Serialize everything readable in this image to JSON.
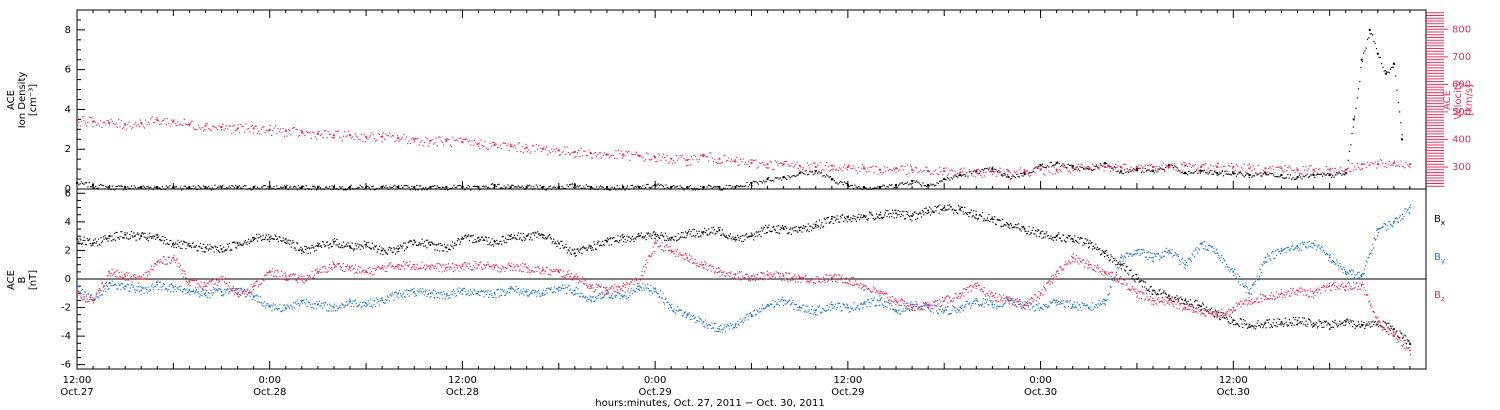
{
  "colors": {
    "black": "#000000",
    "pink": "#e8305a",
    "blue": "#1f78d1"
  },
  "chart_data": [
    {
      "type": "scatter",
      "panel": "top",
      "ylabel_left_lines": [
        "ACE",
        "Ion Density",
        "[cm⁻³]"
      ],
      "ylabel_right_lines": [
        "ACE",
        "Velocity",
        "[km/s]"
      ],
      "ylim_left": [
        0,
        9
      ],
      "yticks_left": [
        0,
        2,
        4,
        6,
        8
      ],
      "ylim_right": [
        220,
        870
      ],
      "yticks_right": [
        300,
        400,
        500,
        600,
        700,
        800
      ],
      "x_unit": "hours since Oct. 27 12:00",
      "xlim": [
        0,
        84
      ],
      "series": [
        {
          "name": "Ion Density",
          "axis": "left",
          "color": "black",
          "x": [
            0,
            1,
            2,
            3,
            4,
            5,
            6,
            7,
            8,
            9,
            10,
            11,
            12,
            13,
            14,
            15,
            16,
            17,
            18,
            19,
            20,
            21,
            22,
            23,
            24,
            25,
            26,
            27,
            28,
            29,
            30,
            31,
            32,
            33,
            34,
            35,
            36,
            37,
            38,
            39,
            40,
            41,
            42,
            43,
            44,
            45,
            46,
            47,
            48,
            49,
            50,
            51,
            52,
            53,
            54,
            55,
            56,
            57,
            58,
            59,
            60,
            61,
            62,
            63,
            64,
            65,
            66,
            67,
            68,
            69,
            70,
            71,
            72,
            73,
            74,
            75,
            76,
            77,
            78,
            79,
            79.5,
            80,
            80.5,
            81,
            81.5,
            82,
            82.5
          ],
          "y": [
            0.3,
            0.2,
            0.1,
            0.1,
            0.1,
            0.1,
            0.1,
            0.1,
            0.1,
            0.1,
            0.1,
            0.1,
            0.1,
            0.1,
            0.1,
            0.1,
            0.1,
            0.1,
            0.1,
            0.1,
            0.1,
            0.1,
            0.1,
            0.1,
            0.1,
            0.1,
            0.2,
            0.1,
            0.1,
            0.1,
            0.1,
            0.2,
            0.1,
            0.1,
            0.1,
            0.1,
            0.2,
            0.1,
            0.1,
            0.1,
            0.1,
            0.1,
            0.3,
            0.5,
            0.6,
            0.8,
            0.9,
            0.5,
            0.2,
            0.1,
            0.1,
            0.2,
            0.4,
            0.2,
            0.5,
            0.7,
            0.9,
            1.0,
            0.6,
            0.8,
            1.2,
            1.3,
            1.1,
            1.0,
            1.3,
            0.9,
            1.0,
            0.9,
            1.2,
            0.8,
            0.9,
            0.8,
            0.8,
            0.7,
            0.8,
            0.7,
            0.6,
            0.7,
            0.7,
            0.8,
            3.5,
            6.5,
            8.0,
            6.8,
            5.8,
            6.3,
            2.5
          ]
        },
        {
          "name": "Velocity",
          "axis": "right",
          "color": "pink",
          "x": [
            0,
            1,
            2,
            3,
            4,
            5,
            6,
            7,
            8,
            9,
            10,
            11,
            12,
            13,
            14,
            15,
            16,
            17,
            18,
            19,
            20,
            21,
            22,
            23,
            24,
            25,
            26,
            27,
            28,
            29,
            30,
            31,
            32,
            33,
            34,
            35,
            36,
            37,
            38,
            39,
            40,
            41,
            42,
            43,
            44,
            45,
            46,
            47,
            48,
            49,
            50,
            51,
            52,
            53,
            54,
            55,
            56,
            57,
            58,
            59,
            60,
            61,
            62,
            63,
            64,
            65,
            66,
            67,
            68,
            69,
            70,
            71,
            72,
            73,
            74,
            75,
            76,
            77,
            78,
            79,
            80,
            81,
            82,
            83
          ],
          "y": [
            470,
            465,
            460,
            455,
            460,
            470,
            465,
            455,
            450,
            445,
            440,
            440,
            435,
            430,
            425,
            420,
            415,
            415,
            410,
            410,
            405,
            400,
            395,
            395,
            390,
            385,
            380,
            375,
            370,
            365,
            360,
            355,
            350,
            345,
            345,
            340,
            335,
            330,
            325,
            340,
            330,
            320,
            315,
            310,
            310,
            305,
            300,
            305,
            300,
            295,
            290,
            295,
            290,
            285,
            285,
            280,
            280,
            285,
            285,
            285,
            290,
            290,
            295,
            295,
            300,
            300,
            300,
            300,
            300,
            305,
            300,
            300,
            300,
            295,
            295,
            295,
            290,
            290,
            290,
            290,
            310,
            310,
            315,
            310
          ]
        }
      ]
    },
    {
      "type": "line",
      "panel": "bottom",
      "ylabel_lines": [
        "ACE",
        "B",
        "[nT]"
      ],
      "ylim": [
        -6.3,
        6.3
      ],
      "yticks": [
        -6,
        -4,
        -2,
        0,
        2,
        4,
        6
      ],
      "zero_line": true,
      "x_unit": "hours since Oct. 27 12:00",
      "xlim": [
        0,
        84
      ],
      "series": [
        {
          "name": "Bx",
          "label": "B",
          "sub": "x",
          "color": "black",
          "x": [
            0,
            1,
            2,
            3,
            4,
            5,
            6,
            7,
            8,
            9,
            10,
            11,
            12,
            13,
            14,
            15,
            16,
            17,
            18,
            19,
            20,
            21,
            22,
            23,
            24,
            25,
            26,
            27,
            28,
            29,
            30,
            31,
            32,
            33,
            34,
            35,
            36,
            37,
            38,
            39,
            40,
            41,
            42,
            43,
            44,
            45,
            46,
            47,
            48,
            49,
            50,
            51,
            52,
            53,
            54,
            55,
            56,
            57,
            58,
            59,
            60,
            61,
            62,
            63,
            64,
            65,
            66,
            67,
            68,
            69,
            70,
            71,
            72,
            73,
            74,
            75,
            76,
            77,
            78,
            79,
            80,
            81,
            82,
            83
          ],
          "y": [
            2.8,
            2.5,
            3.0,
            3.1,
            3.0,
            2.9,
            2.5,
            2.3,
            2.2,
            2.1,
            2.5,
            2.9,
            2.9,
            2.8,
            2.0,
            2.3,
            2.6,
            2.3,
            2.4,
            2.0,
            2.1,
            2.7,
            2.4,
            2.2,
            2.8,
            2.9,
            2.6,
            3.0,
            3.0,
            3.1,
            2.5,
            1.8,
            2.3,
            2.6,
            2.9,
            3.0,
            3.1,
            2.9,
            3.2,
            3.3,
            3.4,
            2.9,
            3.0,
            3.6,
            3.5,
            3.4,
            3.8,
            4.2,
            4.3,
            4.4,
            4.5,
            4.6,
            4.4,
            4.8,
            5.0,
            4.9,
            4.5,
            4.2,
            3.8,
            3.5,
            3.2,
            3.0,
            2.8,
            2.5,
            1.8,
            1.0,
            0.0,
            -0.8,
            -1.2,
            -1.5,
            -1.9,
            -2.5,
            -2.9,
            -3.2,
            -3.1,
            -3.0,
            -2.9,
            -3.1,
            -3.2,
            -3.0,
            -3.2,
            -3.0,
            -3.5,
            -4.5
          ]
        },
        {
          "name": "By",
          "label": "B",
          "sub": "y",
          "color": "blue",
          "x": [
            0,
            1,
            2,
            3,
            4,
            5,
            6,
            7,
            8,
            9,
            10,
            11,
            12,
            13,
            14,
            15,
            16,
            17,
            18,
            19,
            20,
            21,
            22,
            23,
            24,
            25,
            26,
            27,
            28,
            29,
            30,
            31,
            32,
            33,
            34,
            35,
            36,
            37,
            38,
            39,
            40,
            41,
            42,
            43,
            44,
            45,
            46,
            47,
            48,
            49,
            50,
            51,
            52,
            53,
            54,
            55,
            56,
            57,
            58,
            59,
            60,
            61,
            62,
            63,
            64,
            65,
            66,
            67,
            68,
            69,
            70,
            71,
            72,
            73,
            74,
            75,
            76,
            77,
            78,
            79,
            80,
            81,
            82,
            83
          ],
          "y": [
            -0.5,
            -1.5,
            -0.3,
            -0.5,
            -0.8,
            -0.4,
            -0.6,
            -0.8,
            -1.0,
            -0.9,
            -0.7,
            -1.2,
            -1.9,
            -2.0,
            -1.5,
            -1.8,
            -2.0,
            -1.6,
            -1.7,
            -1.5,
            -1.0,
            -0.9,
            -1.0,
            -1.1,
            -0.8,
            -0.9,
            -1.0,
            -0.7,
            -0.9,
            -1.0,
            -0.6,
            -0.8,
            -1.5,
            -1.0,
            -1.2,
            -0.5,
            -0.7,
            -2.0,
            -2.5,
            -3.0,
            -3.5,
            -3.2,
            -2.5,
            -1.8,
            -1.5,
            -2.0,
            -2.2,
            -1.8,
            -2.0,
            -1.7,
            -1.5,
            -2.2,
            -1.8,
            -2.0,
            -2.2,
            -2.0,
            -1.5,
            -1.8,
            -1.5,
            -1.8,
            -2.0,
            -1.5,
            -1.8,
            -2.0,
            -1.5,
            1.5,
            2.0,
            1.5,
            2.0,
            1.0,
            2.5,
            1.8,
            0.5,
            -1.0,
            1.5,
            2.0,
            2.3,
            2.5,
            1.5,
            0.5,
            0.2,
            3.5,
            4.0,
            5.0
          ]
        },
        {
          "name": "Bz",
          "label": "B",
          "sub": "z",
          "color": "pink",
          "x": [
            0,
            1,
            2,
            3,
            4,
            5,
            6,
            7,
            8,
            9,
            10,
            11,
            12,
            13,
            14,
            15,
            16,
            17,
            18,
            19,
            20,
            21,
            22,
            23,
            24,
            25,
            26,
            27,
            28,
            29,
            30,
            31,
            32,
            33,
            34,
            35,
            36,
            37,
            38,
            39,
            40,
            41,
            42,
            43,
            44,
            45,
            46,
            47,
            48,
            49,
            50,
            51,
            52,
            53,
            54,
            55,
            56,
            57,
            58,
            59,
            60,
            61,
            62,
            63,
            64,
            65,
            66,
            67,
            68,
            69,
            70,
            71,
            72,
            73,
            74,
            75,
            76,
            77,
            78,
            79,
            80,
            81,
            82,
            83
          ],
          "y": [
            -1.0,
            -1.5,
            0.5,
            0.2,
            0.0,
            1.2,
            1.5,
            -0.2,
            -0.5,
            0.0,
            -1.0,
            -0.5,
            0.5,
            0.2,
            0.0,
            0.5,
            1.0,
            0.8,
            0.5,
            0.8,
            1.0,
            1.0,
            0.9,
            0.8,
            0.9,
            1.0,
            0.8,
            0.9,
            0.8,
            0.6,
            0.5,
            0.2,
            -0.5,
            -0.8,
            -0.5,
            0.0,
            2.5,
            2.0,
            1.5,
            1.0,
            0.5,
            0.3,
            0.2,
            0.3,
            0.2,
            0.1,
            0.0,
            0.1,
            0.0,
            -0.5,
            -1.0,
            -1.5,
            -2.0,
            -1.8,
            -1.5,
            -1.0,
            -0.5,
            -1.2,
            -1.5,
            -1.8,
            -1.0,
            0.5,
            1.5,
            1.0,
            0.5,
            0.0,
            -1.0,
            -1.5,
            -1.5,
            -2.0,
            -2.2,
            -2.5,
            -2.0,
            -1.5,
            -1.2,
            -1.0,
            -0.8,
            -1.0,
            -0.5,
            -0.5,
            -0.4,
            -3.0,
            -4.0,
            -5.0
          ]
        }
      ]
    }
  ],
  "x_axis": {
    "ticks": [
      {
        "x": 0,
        "time": "12:00",
        "day": "Oct.27"
      },
      {
        "x": 12,
        "time": "0:00",
        "day": "Oct.28"
      },
      {
        "x": 24,
        "time": "12:00",
        "day": "Oct.28"
      },
      {
        "x": 36,
        "time": "0:00",
        "day": "Oct.29"
      },
      {
        "x": 48,
        "time": "12:00",
        "day": "Oct.29"
      },
      {
        "x": 60,
        "time": "0:00",
        "day": "Oct.30"
      },
      {
        "x": 72,
        "time": "12:00",
        "day": "Oct.30"
      }
    ],
    "xlabel": "hours:minutes, Oct. 27, 2011 − Oct. 30, 2011"
  }
}
